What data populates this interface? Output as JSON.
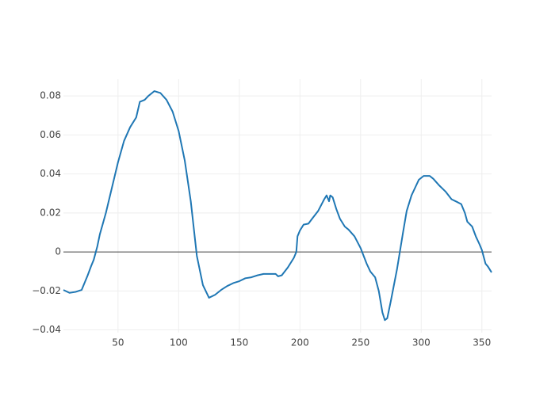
{
  "chart_data": {
    "type": "line",
    "x": [
      5,
      10,
      15,
      20,
      25,
      28,
      30,
      33,
      35,
      40,
      45,
      50,
      55,
      60,
      65,
      68,
      72,
      75,
      80,
      85,
      90,
      95,
      100,
      105,
      110,
      115,
      120,
      125,
      130,
      135,
      140,
      145,
      150,
      155,
      160,
      165,
      170,
      175,
      180,
      182,
      185,
      190,
      195,
      197,
      198,
      200,
      203,
      207,
      210,
      215,
      220,
      222,
      224,
      225,
      227,
      230,
      233,
      237,
      240,
      245,
      250,
      255,
      258,
      262,
      265,
      268,
      270,
      272,
      275,
      280,
      285,
      288,
      292,
      295,
      298,
      302,
      307,
      310,
      315,
      320,
      325,
      330,
      333,
      336,
      338,
      342,
      345,
      348,
      350,
      353,
      355,
      358
    ],
    "series": [
      {
        "color": "#1f77b4",
        "values": [
          -0.0195,
          -0.021,
          -0.0205,
          -0.0195,
          -0.012,
          -0.007,
          -0.004,
          0.003,
          0.009,
          0.02,
          0.033,
          0.046,
          0.057,
          0.064,
          0.069,
          0.077,
          0.078,
          0.08,
          0.0825,
          0.0815,
          0.078,
          0.072,
          0.062,
          0.047,
          0.026,
          -0.002,
          -0.017,
          -0.0235,
          -0.022,
          -0.0195,
          -0.0175,
          -0.016,
          -0.015,
          -0.0135,
          -0.013,
          -0.012,
          -0.0113,
          -0.0113,
          -0.0113,
          -0.0125,
          -0.012,
          -0.008,
          -0.003,
          0.0,
          0.008,
          0.011,
          0.014,
          0.0145,
          0.017,
          0.021,
          0.027,
          0.029,
          0.026,
          0.029,
          0.028,
          0.022,
          0.017,
          0.013,
          0.0115,
          0.008,
          0.002,
          -0.006,
          -0.01,
          -0.013,
          -0.02,
          -0.031,
          -0.035,
          -0.034,
          -0.025,
          -0.009,
          0.01,
          0.021,
          0.029,
          0.033,
          0.037,
          0.039,
          0.039,
          0.0375,
          0.034,
          0.031,
          0.027,
          0.0255,
          0.0245,
          0.02,
          0.0155,
          0.013,
          0.008,
          0.004,
          0.001,
          -0.006,
          -0.0075,
          -0.0105
        ]
      }
    ],
    "xlim": [
      5,
      358
    ],
    "ylim": [
      -0.0414,
      0.0886
    ],
    "xticks": [
      50,
      100,
      150,
      200,
      250,
      300,
      350
    ],
    "yticks": [
      {
        "value": -0.04,
        "label": "−0.04"
      },
      {
        "value": -0.02,
        "label": "−0.02"
      },
      0,
      0.02,
      0.04,
      0.06,
      0.08
    ],
    "grid": true,
    "zeroline": true
  }
}
